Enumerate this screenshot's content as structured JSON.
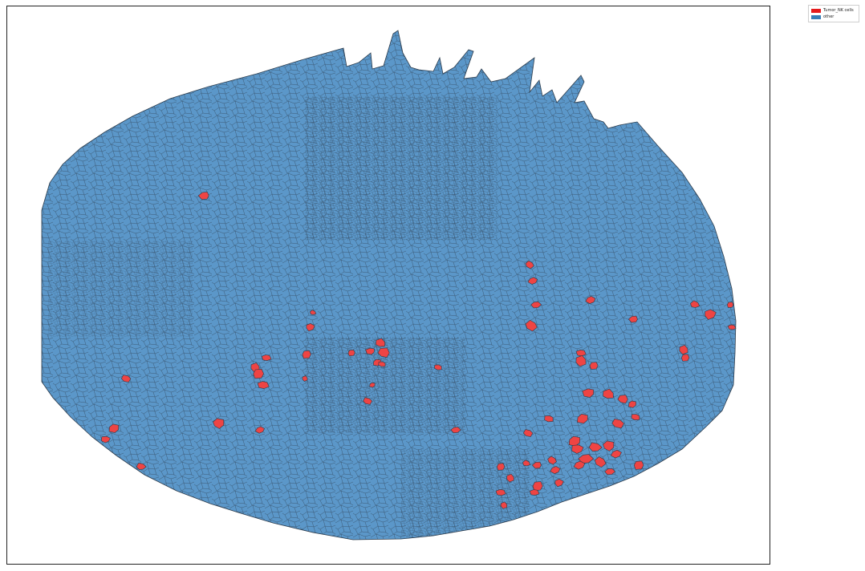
{
  "legend": {
    "items": [
      {
        "label": "Tumor_NK cells",
        "color": "#e41a1c"
      },
      {
        "label": "other",
        "color": "#377eb8"
      }
    ]
  },
  "map": {
    "fill_other": "#5b97c9",
    "fill_highlight": "#ee4444",
    "edge_color": "#2b3a4a"
  }
}
